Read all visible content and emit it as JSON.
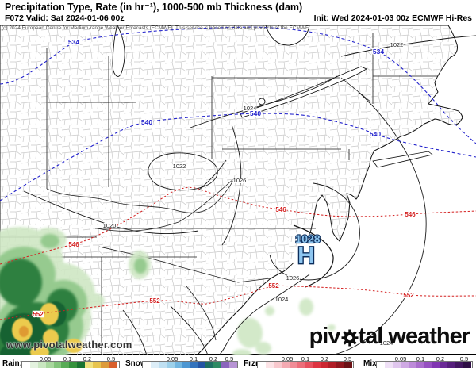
{
  "header": {
    "title": "Precipitation Type, Rate (in hr⁻¹), 1000-500 mb Thickness (dam)",
    "valid": "F072 Valid: Sat 2024-01-06 00z",
    "init": "Init: Wed 2024-01-03 00z ECMWF Hi-Res",
    "copyright": "(c) 2024 European Centre for Medium-range Weather Forecasts (ECMWF). This service is based on data and products of the ECMWF."
  },
  "map": {
    "watermark": "www.pivotalweather.com",
    "high_value": "1028",
    "high_symbol": "H",
    "blue_labels": [
      "534",
      "534",
      "540",
      "540",
      "540"
    ],
    "red_labels": [
      "546",
      "546",
      "546",
      "552",
      "552",
      "552",
      "552"
    ],
    "black_labels": [
      "1022",
      "1024",
      "1022",
      "1026",
      "1020",
      "1026",
      "1024",
      "1024"
    ],
    "colors": {
      "thickness_cold": "#2323cc",
      "thickness_warm": "#d42020",
      "isobar": "#1a1a1a",
      "high_fill": "#8ec6f0",
      "high_stroke": "#0b2d5c"
    }
  },
  "logo": {
    "part1": "piv",
    "part2": "tal weather"
  },
  "legend": {
    "groups": [
      {
        "label": "Rain:",
        "ticks": [
          "0.05",
          "0.1",
          "0.2",
          "0.5"
        ],
        "colors": [
          "#ffffff",
          "#e3f2de",
          "#c9e6c0",
          "#a8d79d",
          "#82c47a",
          "#58ab56",
          "#35923c",
          "#197330",
          "#f1e17c",
          "#e7c44e",
          "#dd9b3a",
          "#d95f2b"
        ]
      },
      {
        "label": "Snow:",
        "ticks": [
          "0.05",
          "0.1",
          "0.2",
          "0.5"
        ],
        "colors": [
          "#ffffff",
          "#ddeef8",
          "#bfe0f2",
          "#9cd0ea",
          "#72b6e0",
          "#4d97d2",
          "#3373bd",
          "#2454a4",
          "#1f6f63",
          "#2e8a63",
          "#8a64bc",
          "#b793d4"
        ]
      },
      {
        "label": "Frzr:",
        "ticks": [
          "0.05",
          "0.1",
          "0.2",
          "0.5"
        ],
        "colors": [
          "#ffffff",
          "#fce3e6",
          "#f8c8cd",
          "#f4aab2",
          "#f08c96",
          "#ec6e7a",
          "#e7505e",
          "#de3341",
          "#cc2631",
          "#b01d26",
          "#8f161d",
          "#6b1014"
        ]
      },
      {
        "label": "Mix:",
        "ticks": [
          "0.05",
          "0.1",
          "0.2",
          "0.5"
        ],
        "colors": [
          "#ffffff",
          "#efe0f6",
          "#e0c6ee",
          "#cfa9e4",
          "#bd8bd9",
          "#aa6dcd",
          "#9650c1",
          "#8136b2",
          "#6b2a97",
          "#561f7c",
          "#421660",
          "#2f0e45"
        ]
      }
    ]
  }
}
